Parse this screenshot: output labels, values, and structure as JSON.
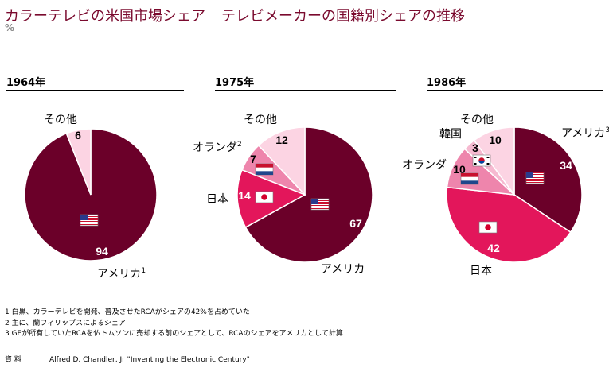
{
  "header": {
    "title_left": "カラーテレビの米国市場シェア",
    "title_right": "テレビメーカーの国籍別シェアの推移",
    "unit": "%"
  },
  "colors": {
    "america": "#6b0029",
    "japan": "#e3165b",
    "netherlands": "#ee85ac",
    "korea": "#f6b9d0",
    "other": "#fcd4e3",
    "title": "#7a0a2e"
  },
  "chart_data": [
    {
      "type": "pie",
      "title": "1964年",
      "slices": [
        {
          "label": "アメリカ",
          "note": "1",
          "value": 94,
          "flag": "us-flag-icon",
          "color": "#6b0029"
        },
        {
          "label": "その他",
          "value": 6,
          "color": "#fcd4e3"
        }
      ]
    },
    {
      "type": "pie",
      "title": "1975年",
      "slices": [
        {
          "label": "アメリカ",
          "value": 67,
          "flag": "us-flag-icon",
          "color": "#6b0029"
        },
        {
          "label": "日本",
          "value": 14,
          "flag": "japan-flag-icon",
          "color": "#e3165b"
        },
        {
          "label": "オランダ",
          "note": "2",
          "value": 7,
          "flag": "netherlands-flag-icon",
          "color": "#ee85ac"
        },
        {
          "label": "その他",
          "value": 12,
          "color": "#fcd4e3"
        }
      ]
    },
    {
      "type": "pie",
      "title": "1986年",
      "slices": [
        {
          "label": "アメリカ",
          "note": "3",
          "value": 34,
          "flag": "us-flag-icon",
          "color": "#6b0029"
        },
        {
          "label": "日本",
          "value": 42,
          "flag": "japan-flag-icon",
          "color": "#e3165b"
        },
        {
          "label": "オランダ",
          "value": 10,
          "flag": "netherlands-flag-icon",
          "color": "#ee85ac"
        },
        {
          "label": "韓国",
          "value": 3,
          "flag": "korea-flag-icon",
          "color": "#f6b9d0"
        },
        {
          "label": "その他",
          "value": 10,
          "color": "#fcd4e3"
        }
      ]
    }
  ],
  "notes": [
    "1 白黒、カラーテレビを開発、普及させたRCAがシェアの42%を占めていた",
    "2 主に、蘭フィリップスによるシェア",
    "3 GEが所有していたRCAを仏トムソンに売却する前のシェアとして、RCAのシェアをアメリカとして計算"
  ],
  "source": {
    "label": "資 料",
    "text": "Alfred D. Chandler, Jr \"Inventing the Electronic Century\""
  }
}
